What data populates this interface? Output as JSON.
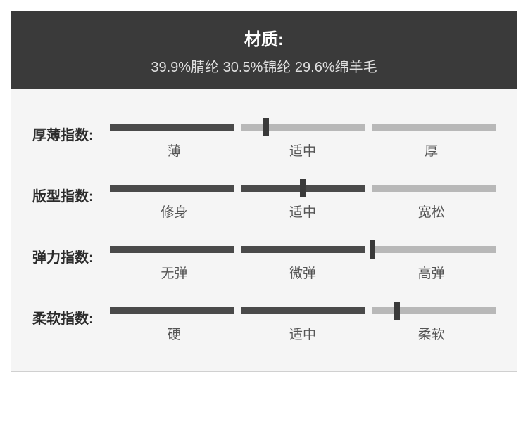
{
  "header": {
    "title": "材质:",
    "subtitle": "39.9%腈纶 30.5%锦纶 29.6%绵羊毛"
  },
  "colors": {
    "header_bg": "#3a3a3a",
    "header_text": "#ffffff",
    "header_sub": "#e0e0e0",
    "panel_bg": "#f5f5f5",
    "panel_border": "#d0d0d0",
    "track_dark": "#4a4a4a",
    "track_light": "#b8b8b8",
    "knob": "#3a3a3a",
    "label_text": "#555555",
    "row_label": "#2b2b2b"
  },
  "style": {
    "track_height": 10,
    "seg_gap": 10,
    "knob_width": 8,
    "knob_height": 26,
    "title_fontsize": 24,
    "sub_fontsize": 20,
    "row_label_fontsize": 20,
    "seg_label_fontsize": 19
  },
  "rows": [
    {
      "label": "厚薄指数:",
      "segments": [
        "薄",
        "适中",
        "厚"
      ],
      "knob_pct": 40.5
    },
    {
      "label": "版型指数:",
      "segments": [
        "修身",
        "适中",
        "宽松"
      ],
      "knob_pct": 50.0
    },
    {
      "label": "弹力指数:",
      "segments": [
        "无弹",
        "微弹",
        "高弹"
      ],
      "knob_pct": 68.0
    },
    {
      "label": "柔软指数:",
      "segments": [
        "硬",
        "适中",
        "柔软"
      ],
      "knob_pct": 74.5
    }
  ]
}
